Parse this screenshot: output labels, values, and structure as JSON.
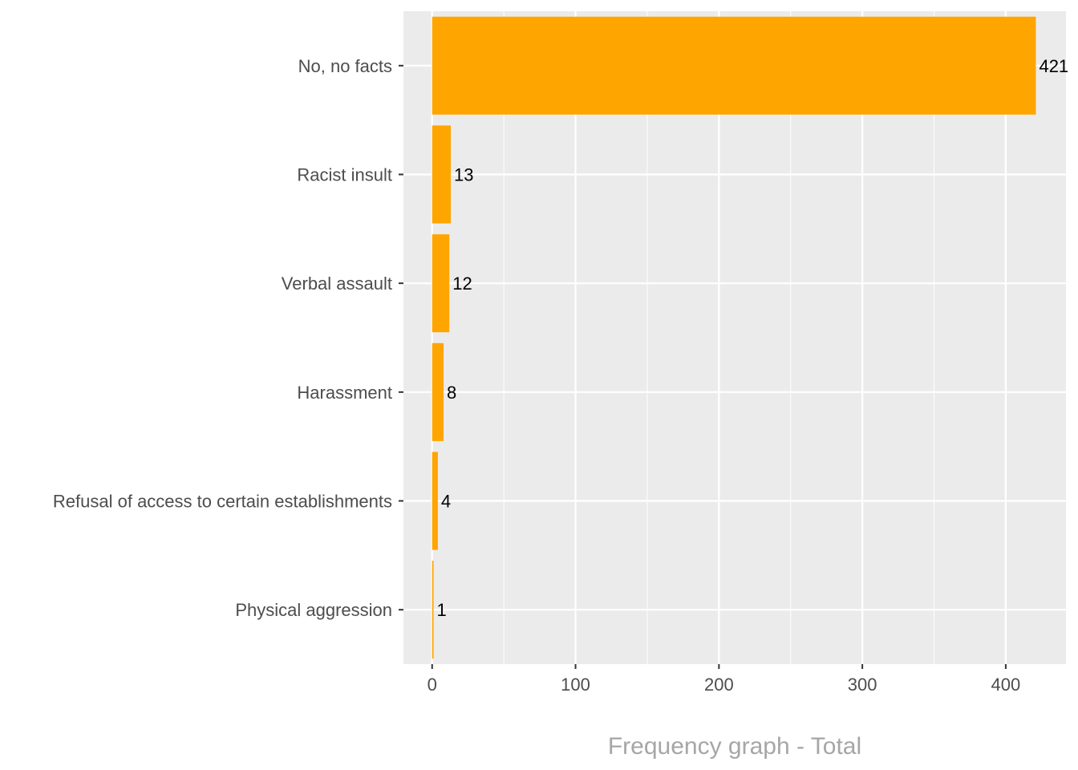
{
  "chart_data": {
    "type": "bar",
    "orientation": "horizontal",
    "categories": [
      "No, no facts",
      "Racist insult",
      "Verbal assault",
      "Harassment",
      "Refusal of access to certain establishments",
      "Physical aggression"
    ],
    "values": [
      421,
      13,
      12,
      8,
      4,
      1
    ],
    "data_labels": [
      "421",
      "13",
      "12",
      "8",
      "4",
      "1"
    ],
    "title": "",
    "xlabel": "Frequency graph - Total",
    "ylabel": "",
    "xlim": [
      -20,
      442
    ],
    "x_ticks": [
      0,
      100,
      200,
      300,
      400
    ],
    "x_tick_labels": [
      "0",
      "100",
      "200",
      "300",
      "400"
    ],
    "grid": true,
    "legend": "none",
    "colors": {
      "bar": "#FFA500",
      "panel_background": "#EBEBEB",
      "grid": "#FFFFFF",
      "tick_text": "#4D4D4D",
      "axis_title": "#A6A6A6",
      "data_label": "#000000"
    }
  }
}
